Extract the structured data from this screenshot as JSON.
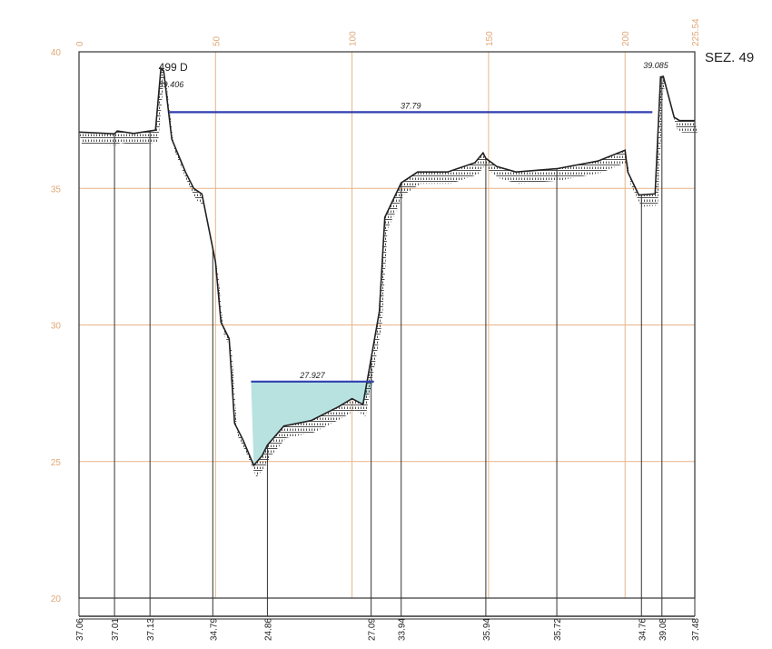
{
  "chart_data": {
    "type": "line",
    "section_label": "SEZ. 49",
    "xlim": [
      0,
      225.54
    ],
    "ylim": [
      20,
      40
    ],
    "x_ticks": [
      "0",
      "50",
      "100",
      "150",
      "200",
      "225.54"
    ],
    "y_ticks": [
      "40",
      "35",
      "30",
      "25",
      "20"
    ],
    "grid": true,
    "ground_profile": {
      "x": [
        0,
        13,
        14,
        20,
        26,
        28,
        30,
        31,
        34,
        39,
        42,
        45,
        48,
        50,
        52,
        55,
        57,
        60,
        64,
        67,
        69,
        75,
        85,
        95,
        100,
        104,
        106,
        110,
        112,
        118,
        124,
        135,
        145,
        148,
        149,
        153,
        160,
        175,
        190,
        200,
        201,
        205,
        211,
        213,
        214,
        218,
        220,
        225.54
      ],
      "y": [
        37.06,
        37.0,
        37.1,
        37.01,
        37.1,
        37.13,
        39.4,
        39.3,
        36.8,
        35.6,
        35.0,
        34.8,
        33.3,
        32.3,
        30.1,
        29.5,
        26.4,
        25.8,
        24.86,
        25.2,
        25.6,
        26.3,
        26.5,
        27.0,
        27.3,
        27.09,
        28.2,
        30.5,
        33.94,
        35.2,
        35.6,
        35.6,
        35.94,
        36.3,
        36.1,
        35.8,
        35.6,
        35.72,
        36.0,
        36.4,
        35.6,
        34.76,
        34.8,
        39.08,
        39.1,
        37.6,
        37.48,
        37.48
      ]
    },
    "station_x": [
      0,
      13,
      26,
      49,
      69,
      107,
      118,
      149,
      175,
      206,
      213.5,
      225.54
    ],
    "station_elevations": [
      "37.06",
      "37.01",
      "37.13",
      "34.79",
      "24.86",
      "27.09",
      "33.94",
      "35.94",
      "35.72",
      "34.76",
      "39.08",
      "37.48"
    ],
    "water_levels": [
      {
        "label": "37.79",
        "value": 37.79,
        "x_range": [
          33,
          210
        ]
      },
      {
        "label": "27.927",
        "value": 27.927,
        "x_range": [
          63,
          108
        ]
      }
    ],
    "annotations": [
      {
        "text": "499 D",
        "x": 28.5,
        "y": 39.3
      },
      {
        "text": "39.406",
        "x": 28.5,
        "y": 38.7
      },
      {
        "text": "39.085",
        "x": 206,
        "y": 39.4
      }
    ],
    "colors": {
      "grid": "#e8b487",
      "profile": "#222222",
      "water_line": "#2f3fb0",
      "water_fill": "#b7e2e0",
      "tick_label": "#e0a878",
      "frame": "#333333"
    }
  }
}
